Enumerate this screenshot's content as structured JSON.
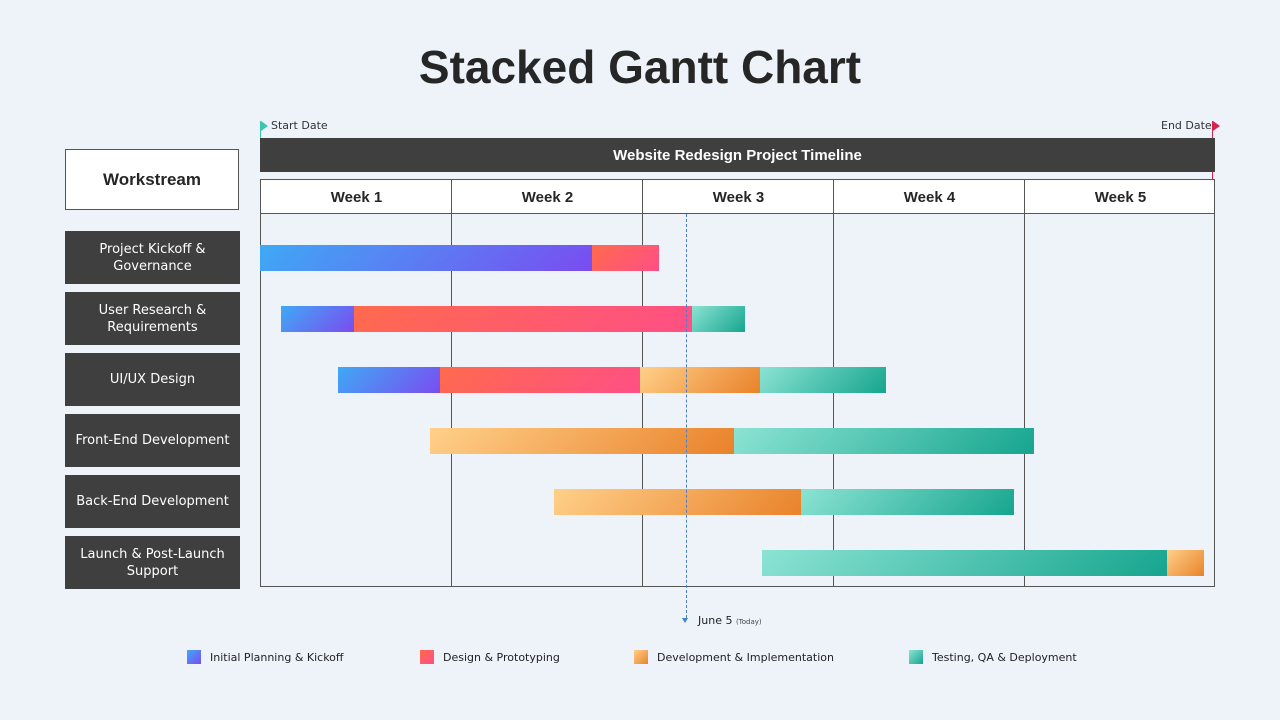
{
  "title": "Stacked Gantt Chart",
  "flags": {
    "start": "Start Date",
    "end": "End Date"
  },
  "timeline_header": "Website Redesign Project Timeline",
  "workstream_header": "Workstream",
  "today": {
    "date": "June 5",
    "note": "(Today)",
    "week_position": 2.23
  },
  "colors": {
    "phase1": [
      "#3fa9f5",
      "#7a4cf0"
    ],
    "phase2": [
      "#ff6a4d",
      "#ff4f86"
    ],
    "phase3": [
      "#ffd08a",
      "#e9822a"
    ],
    "phase4": [
      "#8ce3d3",
      "#16a58f"
    ],
    "dark": "#3f3f3f",
    "start_flag": "#3cc6b0",
    "end_flag": "#d9234f"
  },
  "chart_data": {
    "type": "gantt",
    "title": "Website Redesign Project Timeline",
    "x_categories": [
      "Week 1",
      "Week 2",
      "Week 3",
      "Week 4",
      "Week 5"
    ],
    "x_range_weeks": [
      0,
      5
    ],
    "rows": [
      {
        "label": "Project Kickoff & Governance",
        "segments": [
          {
            "phase": "phase1",
            "start": 0.0,
            "end": 1.74
          },
          {
            "phase": "phase2",
            "start": 1.74,
            "end": 2.09
          }
        ]
      },
      {
        "label": "User Research & Requirements",
        "segments": [
          {
            "phase": "phase1",
            "start": 0.11,
            "end": 0.49
          },
          {
            "phase": "phase2",
            "start": 0.49,
            "end": 2.26
          },
          {
            "phase": "phase4",
            "start": 2.26,
            "end": 2.54
          }
        ]
      },
      {
        "label": "UI/UX Design",
        "segments": [
          {
            "phase": "phase1",
            "start": 0.41,
            "end": 0.94
          },
          {
            "phase": "phase2",
            "start": 0.94,
            "end": 1.99
          },
          {
            "phase": "phase3",
            "start": 1.99,
            "end": 2.62
          },
          {
            "phase": "phase4",
            "start": 2.62,
            "end": 3.28
          }
        ]
      },
      {
        "label": "Front-End Development",
        "segments": [
          {
            "phase": "phase3",
            "start": 0.89,
            "end": 2.48
          },
          {
            "phase": "phase4",
            "start": 2.48,
            "end": 4.05
          }
        ]
      },
      {
        "label": "Back-End Development",
        "segments": [
          {
            "phase": "phase3",
            "start": 1.54,
            "end": 2.83
          },
          {
            "phase": "phase4",
            "start": 2.83,
            "end": 3.95
          }
        ]
      },
      {
        "label": "Launch & Post-Launch Support",
        "segments": [
          {
            "phase": "phase4",
            "start": 2.63,
            "end": 4.75
          },
          {
            "phase": "phase3",
            "start": 4.75,
            "end": 4.94
          }
        ]
      }
    ],
    "legend": [
      {
        "phase": "phase1",
        "label": "Initial Planning & Kickoff"
      },
      {
        "phase": "phase2",
        "label": "Design & Prototyping"
      },
      {
        "phase": "phase3",
        "label": "Development & Implementation"
      },
      {
        "phase": "phase4",
        "label": "Testing, QA & Deployment"
      }
    ]
  }
}
